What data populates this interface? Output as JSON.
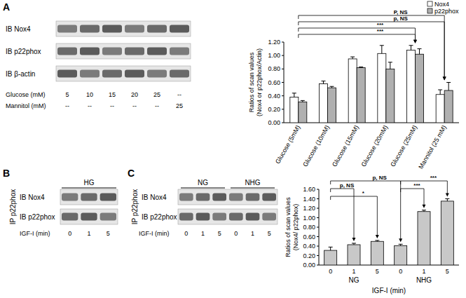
{
  "panel_labels": [
    "A",
    "B",
    "C"
  ],
  "blots": [
    {
      "rows": [
        "IB Nox4",
        "IB p22phox",
        "IB β-actin"
      ],
      "conditions": [
        {
          "label": "Glucose (mM)",
          "values": [
            "5",
            "10",
            "15",
            "20",
            "25",
            "--"
          ]
        },
        {
          "label": "Mannitol (mM)",
          "values": [
            "--",
            "--",
            "--",
            "--",
            "--",
            "25"
          ]
        }
      ]
    },
    {
      "header": "HG",
      "ip": "IP p22phox",
      "rows": [
        "IB Nox4",
        "IB p22phox"
      ],
      "conditions": [
        {
          "label": "IGF-I (min)",
          "values": [
            "0",
            "1",
            "5"
          ]
        }
      ]
    },
    {
      "groups": [
        "NG",
        "NHG"
      ],
      "ip": "IP p22phox",
      "rows": [
        "IB Nox4",
        "IB p22phox"
      ],
      "conditions": [
        {
          "label": "IGF-I (min)",
          "values": [
            "0",
            "1",
            "5",
            "0",
            "1",
            "5"
          ]
        }
      ]
    }
  ],
  "chart_data": [
    {
      "type": "bar",
      "ylabel": "Ratios of scan values (Nox4 or p22phox/Actin)",
      "categories": [
        "Glucose (5mM)",
        "Glucose (10mM)",
        "Glucose (15mM)",
        "Glucose (20mM)",
        "Glucose (25mM)",
        "Mannitol (25 mM)"
      ],
      "series": [
        {
          "name": "Nox4",
          "color": "#ffffff",
          "values": [
            0.38,
            0.58,
            0.95,
            1.03,
            1.08,
            0.42
          ],
          "errors": [
            0.06,
            0.04,
            0.03,
            0.12,
            0.07,
            0.07
          ]
        },
        {
          "name": "p22phox",
          "color": "#b0b0b0",
          "values": [
            0.31,
            0.52,
            0.82,
            0.8,
            1.02,
            0.48
          ],
          "errors": [
            0.02,
            0.02,
            0.01,
            0.1,
            0.08,
            0.12
          ]
        }
      ],
      "ylim": [
        0,
        1.2
      ],
      "yticks": [
        {
          "value": 0,
          "label": "0.00"
        },
        {
          "value": 0.2,
          "label": "0.20"
        },
        {
          "value": 0.4,
          "label": "0.40"
        },
        {
          "value": 0.6,
          "label": "0.60"
        },
        {
          "value": 0.8,
          "label": "0.80"
        },
        {
          "value": 1.0,
          "label": "1.00"
        },
        {
          "value": 1.2,
          "label": "1.20"
        }
      ],
      "legend": "top-right",
      "annotations": [
        {
          "text": "P, NS",
          "from": 0,
          "to": 5
        },
        {
          "text": "p, NS",
          "from": 0,
          "to": 5
        },
        {
          "text": "***",
          "from": 0,
          "to": 4
        },
        {
          "text": "***",
          "from": 0,
          "to": 4
        }
      ]
    },
    {
      "type": "bar",
      "ylabel": "Ratios of scan values (Nox4/ p22phox)",
      "xlabel": "IGF-I (min)",
      "categories": [
        "0",
        "1",
        "5",
        "0",
        "1",
        "5"
      ],
      "group_labels": [
        "NG",
        "NHG"
      ],
      "values": [
        0.31,
        0.43,
        0.5,
        0.41,
        1.13,
        1.35
      ],
      "errors": [
        0.07,
        0.03,
        0.02,
        0.03,
        0.03,
        0.05
      ],
      "color": "#c8c8c8",
      "ylim": [
        0,
        1.6
      ],
      "yticks": [
        {
          "value": 0,
          "label": "0.00"
        },
        {
          "value": 0.2,
          "label": "0.20"
        },
        {
          "value": 0.4,
          "label": "0.40"
        },
        {
          "value": 0.6,
          "label": "0.60"
        },
        {
          "value": 0.8,
          "label": "0.80"
        },
        {
          "value": 1.0,
          "label": "1.00"
        },
        {
          "value": 1.2,
          "label": "1.20"
        },
        {
          "value": 1.4,
          "label": "1.40"
        },
        {
          "value": 1.6,
          "label": "1.60"
        }
      ],
      "annotations": [
        {
          "text": "p, NS",
          "from": 0,
          "to": 3
        },
        {
          "text": "***",
          "from": 3,
          "to": 5
        },
        {
          "text": "p, NS",
          "from": 0,
          "to": 1
        },
        {
          "text": "*",
          "from": 0,
          "to": 2
        },
        {
          "text": "***",
          "from": 3,
          "to": 4
        }
      ]
    }
  ]
}
